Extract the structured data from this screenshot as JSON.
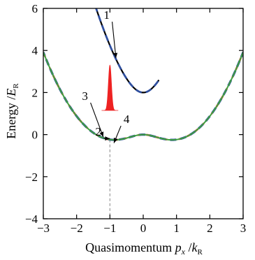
{
  "chart_data": {
    "type": "line",
    "title": "",
    "xlabel": "Quasimomentum",
    "xlabel_symbol": "p",
    "xlabel_sub": "x",
    "xlabel_sep": " /",
    "xlabel_unit": "k",
    "xlabel_unit_sub": "R",
    "ylabel": "Energy /",
    "ylabel_unit": "E",
    "ylabel_unit_sub": "R",
    "xlim": [
      -3,
      3
    ],
    "ylim": [
      -4,
      6
    ],
    "x_ticks": [
      -3,
      -2,
      -1,
      0,
      1,
      2,
      3
    ],
    "y_ticks": [
      -4,
      -2,
      0,
      2,
      4,
      6
    ],
    "x_tick_labels": [
      "−3",
      "−2",
      "−1",
      "0",
      "1",
      "2",
      "3"
    ],
    "y_tick_labels": [
      "−4",
      "−2",
      "0",
      "2",
      "4",
      "6"
    ],
    "grid": false,
    "band_model": {
      "recoil_offset": 1,
      "coupling": 1
    },
    "series": [
      {
        "color": "#000000",
        "style": "solid",
        "band": "upper",
        "x_range": [
          -2.06,
          0.47
        ]
      },
      {
        "color": "#2f4f9f",
        "style": "dashed",
        "band": "upper",
        "x_range": [
          -2.06,
          0.47
        ]
      },
      {
        "color": "#e04b3e",
        "style": "dashed",
        "band": "lower",
        "x_range": [
          -3,
          3
        ]
      },
      {
        "color": "#2f4f9f",
        "style": "dashed",
        "band": "lower",
        "x_range": [
          -3,
          3
        ]
      },
      {
        "color": "#3f9f3f",
        "style": "solid",
        "band": "lower",
        "x_range": [
          -3,
          3
        ]
      }
    ],
    "peak": {
      "color": "#ee2222",
      "center_x": -1.0,
      "base_y": 1.15,
      "top_y": 3.3
    },
    "guide_line": {
      "x": -1.0,
      "color": "#999999"
    },
    "annotations": [
      {
        "label": "1",
        "x": -1.1,
        "y": 5.5
      },
      {
        "label": "3",
        "x": -1.75,
        "y": 1.65
      },
      {
        "label": "2",
        "x": -1.35,
        "y": -0.05
      },
      {
        "label": "4",
        "x": -0.5,
        "y": 0.55
      }
    ]
  }
}
